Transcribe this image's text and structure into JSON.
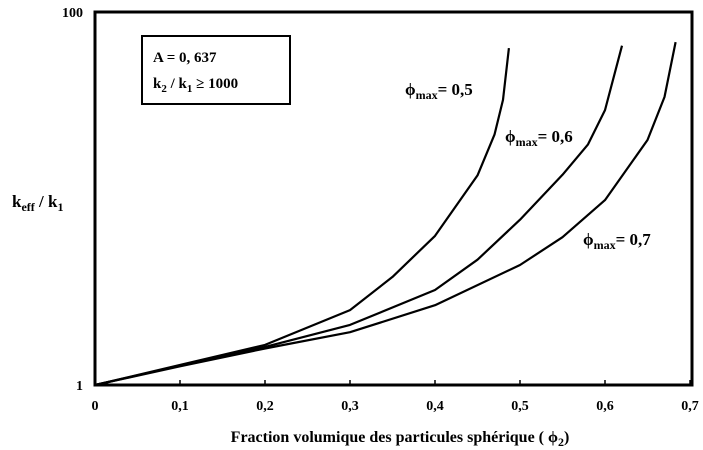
{
  "chart_data": {
    "type": "line",
    "x_label": [
      "Fraction volumique des particules sphérique ( ϕ",
      "2",
      ")"
    ],
    "y_label": [
      "k",
      "eff",
      " / k",
      "1"
    ],
    "annotation_lines": [
      [
        "A = 0, 637"
      ],
      [
        "k",
        "2",
        " / k",
        "1",
        " ≥ 1000"
      ]
    ],
    "log_y": true,
    "grid": false,
    "xlim": [
      0,
      0.7
    ],
    "ylim": [
      1,
      100
    ],
    "xticks": [
      0,
      {
        "value": 0.1,
        "label": "0,1"
      },
      {
        "value": 0.2,
        "label": "0,2"
      },
      {
        "value": 0.3,
        "label": "0,3"
      },
      {
        "value": 0.4,
        "label": "0,4"
      },
      {
        "value": 0.5,
        "label": "0,5"
      },
      {
        "value": 0.6,
        "label": "0,6"
      },
      {
        "value": 0.7,
        "label": "0,7"
      }
    ],
    "yticks": [
      1,
      100
    ],
    "series": [
      {
        "label": [
          "ϕ",
          "max",
          "= 0,5"
        ],
        "color": "#000000",
        "x": [
          0,
          0.1,
          0.2,
          0.3,
          0.35,
          0.4,
          0.45,
          0.47,
          0.48,
          0.487
        ],
        "values": [
          1,
          1.28,
          1.64,
          2.52,
          3.8,
          6.3,
          13.3,
          22,
          33.8,
          64
        ]
      },
      {
        "label": [
          "ϕ",
          "max",
          "= 0,6"
        ],
        "color": "#000000",
        "x": [
          0,
          0.1,
          0.2,
          0.3,
          0.4,
          0.45,
          0.5,
          0.55,
          0.58,
          0.6,
          0.62
        ],
        "values": [
          1,
          1.27,
          1.6,
          2.1,
          3.23,
          4.7,
          7.7,
          13.4,
          19.5,
          29.8,
          66
        ]
      },
      {
        "label": [
          "ϕ",
          "max",
          "= 0,7"
        ],
        "color": "#000000",
        "x": [
          0,
          0.1,
          0.2,
          0.3,
          0.4,
          0.5,
          0.55,
          0.6,
          0.65,
          0.67,
          0.683
        ],
        "values": [
          1,
          1.26,
          1.57,
          1.92,
          2.68,
          4.4,
          6.2,
          9.8,
          20.6,
          35,
          69
        ]
      }
    ]
  }
}
